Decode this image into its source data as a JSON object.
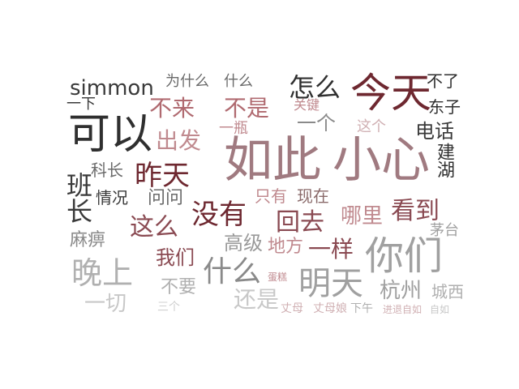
{
  "words": [
    {
      "text": "如此",
      "color": "#a07a80"
    },
    {
      "text": "小心",
      "color": "#a07a80"
    },
    {
      "text": "今天",
      "color": "#6e2830"
    },
    {
      "text": "可以",
      "color": "#2f2f2f"
    },
    {
      "text": "你们",
      "color": "#a0a0a0"
    },
    {
      "text": "明天",
      "color": "#a0a0a0"
    },
    {
      "text": "晚上",
      "color": "#b0b0b0"
    },
    {
      "text": "昨天",
      "color": "#6e2830"
    },
    {
      "text": "没有",
      "color": "#6e2830"
    },
    {
      "text": "怎么",
      "color": "#2f2f2f"
    },
    {
      "text": "什么",
      "color": "#8a8a8a"
    },
    {
      "text": "班长",
      "color": "#3a3a3a"
    },
    {
      "text": "simmon",
      "color": "#3a3a3a"
    },
    {
      "text": "不来",
      "color": "#b06a70"
    },
    {
      "text": "不是",
      "color": "#b06a70"
    },
    {
      "text": "出发",
      "color": "#c08a8f"
    },
    {
      "text": "电话",
      "color": "#3a3a3a"
    },
    {
      "text": "建湖",
      "color": "#2f2f2f"
    },
    {
      "text": "看到",
      "color": "#8a4a52"
    },
    {
      "text": "回去",
      "color": "#8a4a52"
    },
    {
      "text": "这么",
      "color": "#8a4a52"
    },
    {
      "text": "一样",
      "color": "#8a4a52"
    },
    {
      "text": "哪里",
      "color": "#c08a8f"
    },
    {
      "text": "还是",
      "color": "#c8c8c8"
    },
    {
      "text": "杭州",
      "color": "#a0a0a0"
    },
    {
      "text": "一个",
      "color": "#8a8a8a"
    },
    {
      "text": "我们",
      "color": "#8a4a52"
    },
    {
      "text": "高级",
      "color": "#9a9a9a"
    },
    {
      "text": "地方",
      "color": "#c08a8f"
    },
    {
      "text": "只有",
      "color": "#c08a8f"
    },
    {
      "text": "现在",
      "color": "#8a6a6a"
    },
    {
      "text": "不要",
      "color": "#b0b0b0"
    },
    {
      "text": "一切",
      "color": "#c8c8c8"
    },
    {
      "text": "麻痹",
      "color": "#8a8a8a"
    },
    {
      "text": "情况",
      "color": "#3a3a3a"
    },
    {
      "text": "问问",
      "color": "#6a6a6a"
    },
    {
      "text": "科长",
      "color": "#6a6a6a"
    },
    {
      "text": "为什么",
      "color": "#6a6a6a"
    },
    {
      "text": "什么",
      "color": "#6a6a6a"
    },
    {
      "text": "一下",
      "color": "#3a3a3a"
    },
    {
      "text": "不了",
      "color": "#2f2f2f"
    },
    {
      "text": "东子",
      "color": "#2f2f2f"
    },
    {
      "text": "关键",
      "color": "#c08a8f"
    },
    {
      "text": "这个",
      "color": "#d0b0b3"
    },
    {
      "text": "一瓶",
      "color": "#c08a8f"
    },
    {
      "text": "茅台",
      "color": "#a0a0a0"
    },
    {
      "text": "城西",
      "color": "#b0b0b0"
    },
    {
      "text": "蛋糕",
      "color": "#c08a8f"
    },
    {
      "text": "三个",
      "color": "#d0d0d0"
    },
    {
      "text": "丈母",
      "color": "#d0b0b3"
    },
    {
      "text": "丈母娘",
      "color": "#d0b0b3"
    },
    {
      "text": "下午",
      "color": "#b0b0b0"
    },
    {
      "text": "进退自如",
      "color": "#d0b0b3"
    },
    {
      "text": "自如",
      "color": "#c8c8c8"
    }
  ]
}
